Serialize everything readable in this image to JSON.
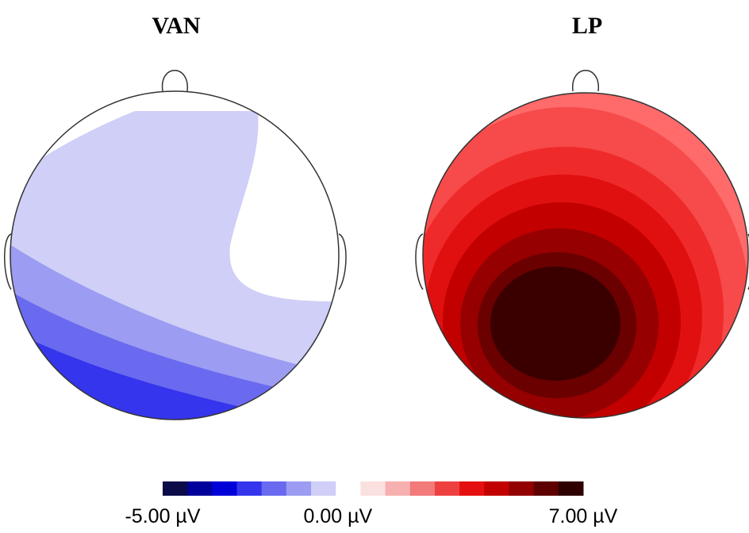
{
  "panels": [
    {
      "title": "VAN"
    },
    {
      "title": "LP"
    }
  ],
  "colorbar": {
    "lim": [
      -5,
      7
    ],
    "ticks": [
      {
        "value": -5,
        "label": "-5.00 µV"
      },
      {
        "value": 0,
        "label": "0.00 µV"
      },
      {
        "value": 7,
        "label": "7.00 µV"
      }
    ],
    "colors": [
      "#0b0b4a",
      "#00009a",
      "#0000d8",
      "#3535ee",
      "#6a6af0",
      "#9c9cf2",
      "#cfcff8",
      "#ffffff",
      "#fbe0e0",
      "#f7b0b0",
      "#f27a7a",
      "#ef4040",
      "#e60f0f",
      "#c20000",
      "#920000",
      "#5e0000",
      "#2e0000"
    ]
  }
}
